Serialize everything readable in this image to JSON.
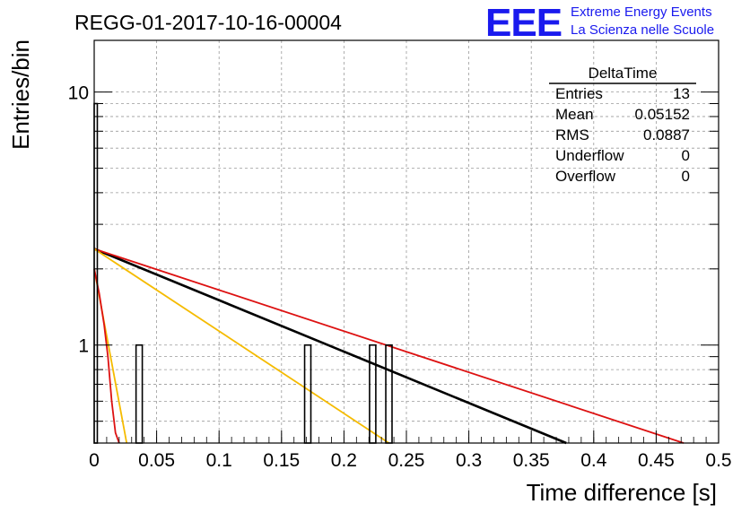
{
  "run_title": "REGG-01-2017-10-16-00004",
  "logo": {
    "mark": "EEE",
    "line1": "Extreme Energy Events",
    "line2": "La Scienza nelle Scuole",
    "color": "#1a1aee"
  },
  "stats_box": {
    "title": "DeltaTime",
    "rows": [
      {
        "label": "Entries",
        "value": "13"
      },
      {
        "label": "Mean",
        "value": "0.05152"
      },
      {
        "label": "RMS",
        "value": "0.0887"
      },
      {
        "label": "Underflow",
        "value": "0"
      },
      {
        "label": "Overflow",
        "value": "0"
      }
    ]
  },
  "chart_data": {
    "type": "histogram",
    "title": "",
    "xlabel": "Time difference [s]",
    "ylabel": "Entries/bin",
    "xlim": [
      0,
      0.5
    ],
    "ylim": [
      0.41,
      16
    ],
    "yscale": "log",
    "grid": true,
    "x_ticks": [
      "0",
      "0.05",
      "0.1",
      "0.15",
      "0.2",
      "0.25",
      "0.3",
      "0.35",
      "0.4",
      "0.45",
      "0.5"
    ],
    "x_tick_values": [
      0,
      0.05,
      0.1,
      0.15,
      0.2,
      0.25,
      0.3,
      0.35,
      0.4,
      0.45,
      0.5
    ],
    "y_ticks": [
      "1",
      "10"
    ],
    "y_tick_values": [
      1,
      10
    ],
    "bins": [
      {
        "x0": 0.0,
        "x1": 0.0025,
        "count": 9
      },
      {
        "x0": 0.0335,
        "x1": 0.0385,
        "count": 1
      },
      {
        "x0": 0.1685,
        "x1": 0.1735,
        "count": 1
      },
      {
        "x0": 0.2205,
        "x1": 0.2255,
        "count": 1
      },
      {
        "x0": 0.2335,
        "x1": 0.2385,
        "count": 1
      }
    ],
    "fits": [
      {
        "color": "#000000",
        "points": [
          [
            0.0,
            2.4
          ],
          [
            0.378,
            0.41
          ]
        ]
      },
      {
        "color": "#dd1111",
        "points": [
          [
            0.0,
            2.4
          ],
          [
            0.472,
            0.41
          ]
        ]
      },
      {
        "color": "#f5bb00",
        "points": [
          [
            0.0,
            2.4
          ],
          [
            0.236,
            0.41
          ]
        ]
      },
      {
        "color": "#f5bb00",
        "points": [
          [
            0.0,
            2.0
          ],
          [
            0.026,
            0.41
          ]
        ]
      },
      {
        "color": "#dd1111",
        "points": [
          [
            0.0,
            2.0
          ],
          [
            0.004,
            1.6
          ],
          [
            0.008,
            1.2
          ],
          [
            0.011,
            0.9
          ],
          [
            0.014,
            0.6
          ],
          [
            0.017,
            0.45
          ],
          [
            0.02,
            0.41
          ]
        ]
      }
    ]
  }
}
